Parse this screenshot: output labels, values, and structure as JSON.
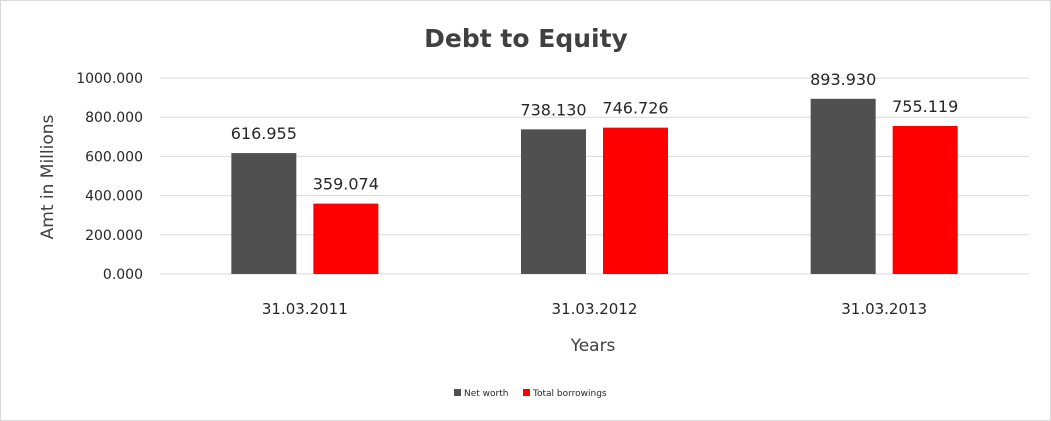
{
  "chart_data": {
    "type": "bar",
    "title": "Debt to Equity",
    "xlabel": "Years",
    "ylabel": "Amt in Millions",
    "categories": [
      "31.03.2011",
      "31.03.2012",
      "31.03.2013"
    ],
    "series": [
      {
        "name": "Net worth",
        "values": [
          616.955,
          738.13,
          893.93
        ],
        "labels": [
          "616.955",
          "738.130",
          "893.930"
        ],
        "color": "#505050"
      },
      {
        "name": "Total borrowings",
        "values": [
          359.074,
          746.726,
          755.119
        ],
        "labels": [
          "359.074",
          "746.726",
          "755.119"
        ],
        "color": "#ff0000"
      }
    ],
    "ylim": [
      0,
      1000
    ],
    "yticks": [
      "0.000",
      "200.000",
      "400.000",
      "600.000",
      "800.000",
      "1000.000"
    ],
    "grid": true,
    "legend_position": "bottom"
  }
}
